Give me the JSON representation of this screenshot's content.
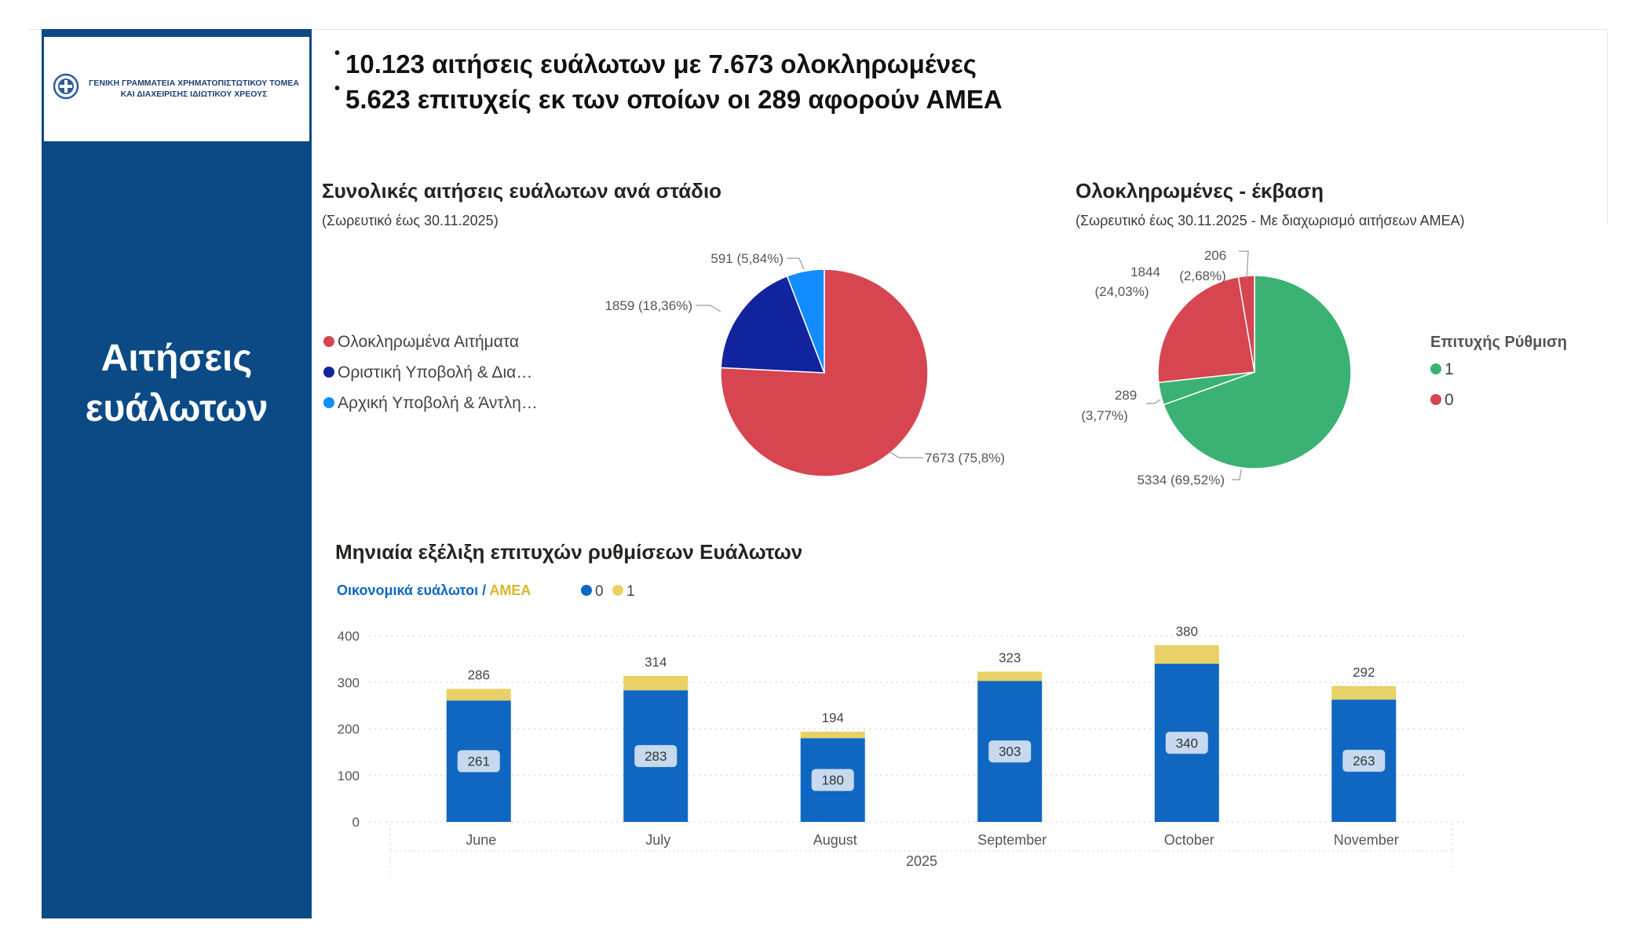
{
  "header": {
    "logo_line1": "ΓΕΝΙΚΗ ΓΡΑΜΜΑΤΕΙΑ ΧΡΗΜΑΤΟΠΙΣΤΩΤΙΚΟΥ ΤΟΜΕΑ",
    "logo_line2": "ΚΑΙ ΔΙΑΧΕΙΡΙΣΗΣ ΙΔΙΩΤΙΚΟΥ ΧΡΕΟΥΣ",
    "sidebar_line1": "Αιτήσεις",
    "sidebar_line2": "ευάλωτων",
    "bullet_symbol": "•",
    "bullets": [
      "10.123 αιτήσεις ευάλωτων με 7.673 ολοκληρωμένες",
      "5.623 επιτυχείς εκ των οποίων οι 289 αφορούν ΑΜΕΑ"
    ]
  },
  "colors": {
    "sidebar": "#0b4a85",
    "red": "#d64550",
    "navy": "#12239e",
    "light_blue": "#118dff",
    "green": "#3bb273",
    "bar_blue": "#0f67c2",
    "bar_yellow": "#e8d166"
  },
  "chart_data": [
    {
      "type": "pie",
      "title": "Συνολικές αιτήσεις ευάλωτων ανά στάδιο",
      "subtitle": "(Σωρευτικό έως 30.11.2025)",
      "categories": [
        "Ολοκληρωμένα Αιτήματα",
        "Οριστική Υποβολή & Δια…",
        "Αρχική Υποβολή & Άντλη…"
      ],
      "values": [
        7673,
        1859,
        591
      ],
      "data_labels": [
        "7673 (75,8%)",
        "1859 (18,36%)",
        "591 (5,84%)"
      ],
      "colors": [
        "#d64550",
        "#12239e",
        "#118dff"
      ],
      "legend_position": "left"
    },
    {
      "type": "pie",
      "title": "Ολοκληρωμένες - έκβαση",
      "subtitle": "(Σωρευτικό έως 30.11.2025 - Με διαχωρισμό αιτήσεων ΑΜΕΑ)",
      "legend_title": "Επιτυχής Ρύθμιση",
      "legend": [
        {
          "label": "1",
          "color": "#3bb273"
        },
        {
          "label": "0",
          "color": "#d64550"
        }
      ],
      "slices": [
        {
          "value": 5334,
          "label_line1": "5334 (69,52%)",
          "label_line2": "",
          "color": "#3bb273",
          "group": "1"
        },
        {
          "value": 289,
          "label_line1": "289",
          "label_line2": "(3,77%)",
          "color": "#3bb273",
          "group": "1"
        },
        {
          "value": 1844,
          "label_line1": "1844",
          "label_line2": "(24,03%)",
          "color": "#d64550",
          "group": "0"
        },
        {
          "value": 206,
          "label_line1": "206",
          "label_line2": "(2,68%)",
          "color": "#d64550",
          "group": "0"
        }
      ],
      "legend_position": "right"
    },
    {
      "type": "bar",
      "stacked": true,
      "title": "Μηνιαία εξέλιξη επιτυχών ρυθμίσεων Ευάλωτων",
      "legend_label_part1": "Οικονομικά ευάλωτοι / ",
      "legend_label_part2": "ΑΜΕΑ",
      "categories": [
        "June",
        "July",
        "August",
        "September",
        "October",
        "November"
      ],
      "x_group_label": "2025",
      "series": [
        {
          "name": "0",
          "values": [
            261,
            283,
            180,
            303,
            340,
            263
          ],
          "color": "#0f67c2"
        },
        {
          "name": "1",
          "values": [
            25,
            31,
            14,
            20,
            40,
            29
          ],
          "color": "#e8d166"
        }
      ],
      "totals": [
        286,
        314,
        194,
        323,
        380,
        292
      ],
      "ylim": [
        0,
        400
      ],
      "yticks": [
        0,
        100,
        200,
        300,
        400
      ],
      "grid": true,
      "legend_position": "top-left"
    }
  ]
}
